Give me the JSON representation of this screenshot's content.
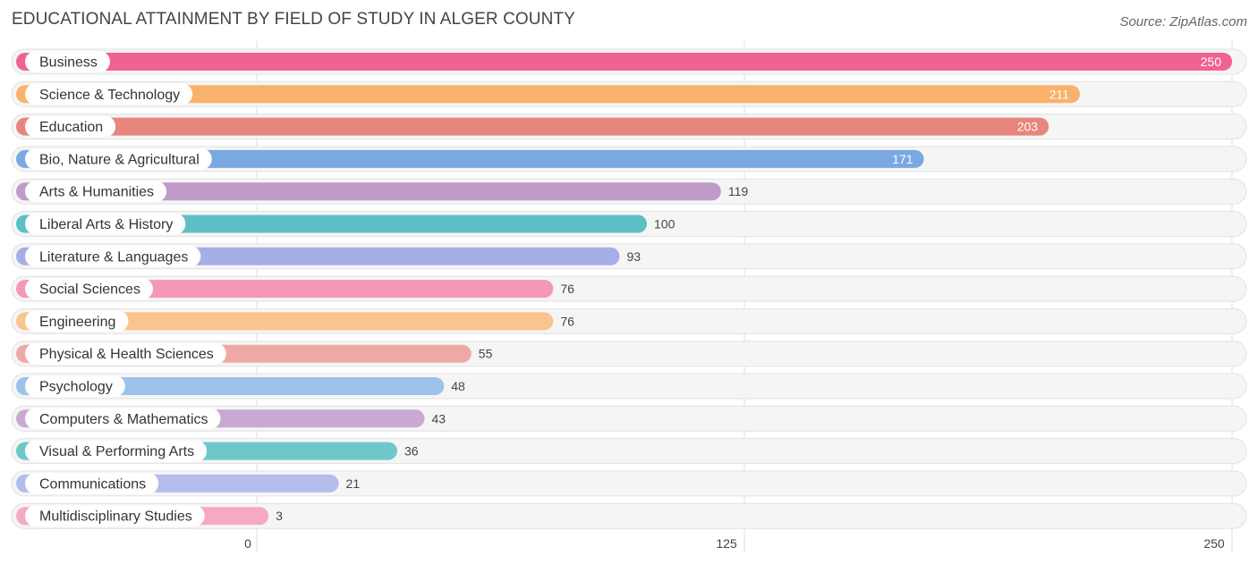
{
  "header": {
    "title": "EDUCATIONAL ATTAINMENT BY FIELD OF STUDY IN ALGER COUNTY",
    "source": "Source: ZipAtlas.com"
  },
  "chart_data": {
    "type": "bar",
    "orientation": "horizontal",
    "title": "EDUCATIONAL ATTAINMENT BY FIELD OF STUDY IN ALGER COUNTY",
    "xlabel": "",
    "ylabel": "",
    "xlim": [
      0,
      250
    ],
    "ticks": [
      0,
      125,
      250
    ],
    "grid": true,
    "categories": [
      "Business",
      "Science & Technology",
      "Education",
      "Bio, Nature & Agricultural",
      "Arts & Humanities",
      "Liberal Arts & History",
      "Literature & Languages",
      "Social Sciences",
      "Engineering",
      "Physical & Health Sciences",
      "Psychology",
      "Computers & Mathematics",
      "Visual & Performing Arts",
      "Communications",
      "Multidisciplinary Studies"
    ],
    "values": [
      250,
      211,
      203,
      171,
      119,
      100,
      93,
      76,
      76,
      55,
      48,
      43,
      36,
      21,
      3
    ],
    "colors": [
      "#f06292",
      "#f9b26b",
      "#e8857c",
      "#7aa8e0",
      "#be9bc8",
      "#5bbfc4",
      "#a6aee6",
      "#f597b6",
      "#f9c48e",
      "#eea9a4",
      "#9dc2ec",
      "#caa8d2",
      "#6fc7c9",
      "#b4bcec",
      "#f6a9c5"
    ]
  }
}
